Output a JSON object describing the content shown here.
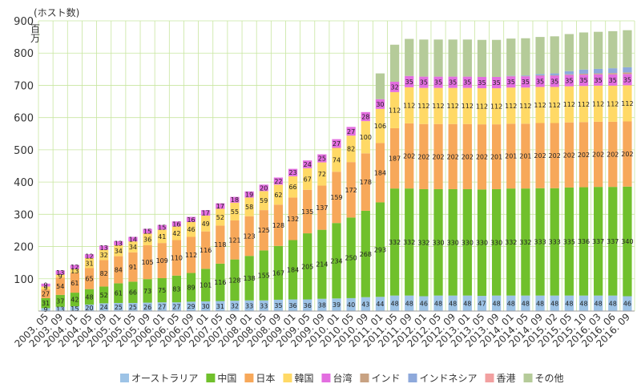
{
  "chart_data": {
    "type": "bar",
    "stacked": true,
    "unit_label": "(ホスト数)",
    "y_unit": "百万",
    "ylim": [
      0,
      900
    ],
    "yticks": [
      100,
      200,
      300,
      400,
      500,
      600,
      700,
      800,
      900
    ],
    "grid": true,
    "legend_placement": "bottom",
    "categories": [
      "2003. 05",
      "2003. 09",
      "2004. 01",
      "2004. 05",
      "2004. 09",
      "2005. 01",
      "2005. 05",
      "2005. 09",
      "2006. 01",
      "2006. 05",
      "2006. 09",
      "2007. 01",
      "2007. 05",
      "2007. 09",
      "2008. 01",
      "2008. 05",
      "2008. 09",
      "2009. 01",
      "2009. 05",
      "2009. 09",
      "2010. 01",
      "2010. 05",
      "2010. 09",
      "2011. 01",
      "2011. 05",
      "2011. 09",
      "2012. 01",
      "2012. 05",
      "2012. 09",
      "2013. 01",
      "2013. 05",
      "2013. 09",
      "2014. 01",
      "2014. 05",
      "2014. 09",
      "2015. 01",
      "2015. 05",
      "2015. 09",
      "2016. 01",
      "2016. 05",
      "2016. 09"
    ],
    "x_tick_labels": [
      "2003. 05",
      "2003. 09",
      "2004. 01",
      "2004. 05",
      "2004. 09",
      "2005. 01",
      "2005. 05",
      "2005. 09",
      "2006. 01",
      "2006. 05",
      "2006. 09",
      "2007. 01",
      "2007. 05",
      "2007. 09",
      "2008. 01",
      "2008. 05",
      "2008. 09",
      "2009. 01",
      "2009. 05",
      "2009. 09",
      "2010. 01",
      "2010. 05",
      "2010. 09",
      "2011. 01",
      "2011. 05",
      "2011. 09",
      "2012. 01",
      "2012. 05",
      "2012. 09",
      "2013. 01",
      "2013. 05",
      "2013. 09",
      "2014. 01",
      "2014. 05",
      "2014. 09",
      "2015. 02",
      "2015. 05",
      "2015. 10",
      "2016. 03",
      "2016. 06",
      "2016. 09"
    ],
    "series": [
      {
        "name": "オーストラリア",
        "color": "#9dc3e6",
        "values": [
          9,
          13,
          15,
          20,
          24,
          25,
          25,
          26,
          27,
          27,
          29,
          30,
          31,
          32,
          33,
          33,
          35,
          36,
          36,
          38,
          39,
          40,
          43,
          44,
          48,
          48,
          46,
          48,
          48,
          48,
          47,
          48,
          48,
          48,
          48,
          48,
          48,
          48,
          48,
          48,
          46
        ]
      },
      {
        "name": "中国",
        "color": "#70c02c",
        "values": [
          31,
          37,
          42,
          48,
          52,
          61,
          66,
          73,
          75,
          83,
          89,
          101,
          116,
          128,
          138,
          155,
          167,
          184,
          205,
          214,
          234,
          250,
          268,
          293,
          332,
          332,
          332,
          330,
          330,
          330,
          330,
          330,
          332,
          332,
          333,
          333,
          335,
          336,
          337,
          337,
          340
        ]
      },
      {
        "name": "日本",
        "color": "#f7a85a",
        "values": [
          27,
          54,
          61,
          65,
          82,
          84,
          91,
          105,
          109,
          110,
          112,
          116,
          118,
          121,
          123,
          125,
          128,
          132,
          135,
          137,
          159,
          172,
          178,
          184,
          187,
          202,
          202,
          202,
          202,
          202,
          202,
          201,
          201,
          201,
          202,
          202,
          202,
          202,
          202,
          202,
          202
        ]
      },
      {
        "name": "韓国",
        "color": "#ffd966",
        "values": [
          9,
          9,
          13,
          31,
          32,
          34,
          34,
          36,
          41,
          42,
          46,
          49,
          52,
          55,
          58,
          59,
          62,
          66,
          67,
          72,
          74,
          82,
          100,
          106,
          112,
          112,
          112,
          112,
          112,
          112,
          112,
          112,
          112,
          112,
          112,
          112,
          112,
          112,
          112,
          112,
          112
        ]
      },
      {
        "name": "台湾",
        "color": "#e36ee0",
        "values": [
          9,
          13,
          12,
          12,
          13,
          13,
          14,
          15,
          15,
          16,
          16,
          17,
          17,
          18,
          19,
          20,
          22,
          23,
          24,
          25,
          27,
          27,
          28,
          30,
          32,
          35,
          35,
          35,
          35,
          35,
          35,
          35,
          35,
          35,
          35,
          35,
          35,
          35,
          35,
          35,
          35
        ]
      },
      {
        "name": "インド",
        "color": "#c8a282",
        "values": [
          0,
          0,
          0,
          0,
          0,
          0,
          0,
          0,
          0,
          0,
          0,
          0,
          0,
          0,
          0,
          0,
          0,
          0,
          0,
          0,
          0,
          0,
          0,
          0,
          0,
          0,
          0,
          0,
          0,
          0,
          0,
          0,
          1,
          1,
          1,
          1,
          2,
          3,
          3,
          4,
          5
        ]
      },
      {
        "name": "インドネシア",
        "color": "#8ea9db",
        "values": [
          0,
          0,
          0,
          0,
          0,
          0,
          0,
          0,
          0,
          0,
          0,
          0,
          0,
          0,
          0,
          0,
          0,
          0,
          0,
          0,
          0,
          0,
          0,
          0,
          0,
          0,
          0,
          0,
          0,
          0,
          0,
          0,
          1,
          2,
          4,
          6,
          10,
          13,
          14,
          15,
          16
        ]
      },
      {
        "name": "香港",
        "color": "#f2a0a0",
        "values": [
          0,
          0,
          0,
          0,
          0,
          0,
          0,
          0,
          0,
          0,
          0,
          0,
          0,
          0,
          0,
          0,
          0,
          0,
          0,
          0,
          0,
          0,
          0,
          0,
          0,
          0,
          0,
          0,
          0,
          0,
          0,
          0,
          0,
          0,
          0,
          0,
          0,
          0,
          0,
          0,
          0
        ]
      },
      {
        "name": "その他",
        "color": "#b5cb99",
        "values": [
          0,
          0,
          0,
          0,
          0,
          0,
          0,
          0,
          0,
          0,
          0,
          0,
          0,
          0,
          0,
          0,
          0,
          0,
          0,
          0,
          0,
          0,
          0,
          0,
          0,
          0,
          0,
          0,
          0,
          0,
          0,
          0,
          0,
          0,
          0,
          0,
          0,
          0,
          0,
          0,
          0
        ]
      }
    ],
    "top_totals": [
      0,
      0,
      0,
      0,
      0,
      0,
      0,
      0,
      0,
      0,
      0,
      0,
      0,
      0,
      0,
      0,
      0,
      0,
      0,
      0,
      0,
      0,
      0,
      80,
      115,
      115,
      115,
      115,
      115,
      115,
      115,
      115,
      115,
      115,
      115,
      115,
      115,
      115,
      115,
      115,
      115
    ]
  },
  "colors": {
    "grid": "#c8e6a0",
    "axis": "#999999",
    "background": "#ffffff"
  }
}
